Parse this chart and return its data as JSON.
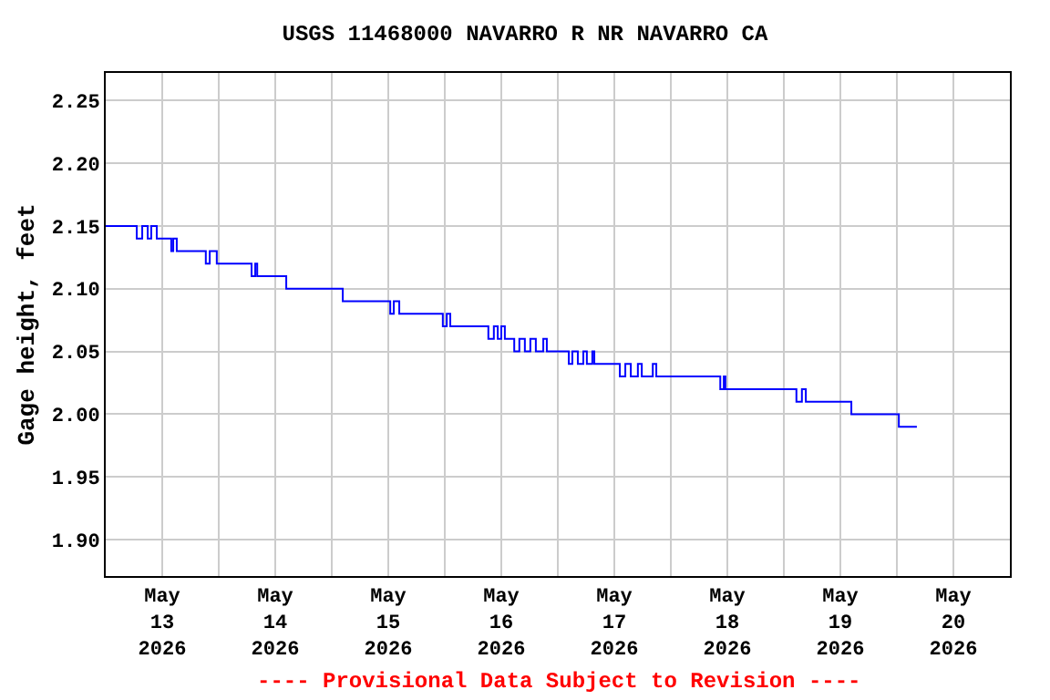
{
  "chart_data": {
    "type": "step",
    "title": "USGS 11468000 NAVARRO R NR NAVARRO CA",
    "ylabel": "Gage height, feet",
    "annotations": [
      "---- Provisional Data Subject to Revision ----"
    ],
    "x": [
      "2026-05-13T00:00",
      "2026-05-13T06:35",
      "2026-05-13T07:45",
      "2026-05-13T08:55",
      "2026-05-13T09:40",
      "2026-05-13T10:50",
      "2026-05-13T13:55",
      "2026-05-13T14:20",
      "2026-05-13T15:05",
      "2026-05-13T21:15",
      "2026-05-13T22:05",
      "2026-05-13T23:35",
      "2026-05-14T06:58",
      "2026-05-14T07:45",
      "2026-05-14T08:10",
      "2026-05-14T14:20",
      "2026-05-15T02:20",
      "2026-05-15T12:25",
      "2026-05-15T13:10",
      "2026-05-15T14:20",
      "2026-05-15T23:35",
      "2026-05-16T00:25",
      "2026-05-16T01:10",
      "2026-05-16T09:15",
      "2026-05-16T10:25",
      "2026-05-16T11:15",
      "2026-05-16T12:00",
      "2026-05-16T12:45",
      "2026-05-16T14:45",
      "2026-05-16T15:50",
      "2026-05-16T17:00",
      "2026-05-16T18:10",
      "2026-05-16T19:20",
      "2026-05-16T20:55",
      "2026-05-16T21:40",
      "2026-05-17T02:20",
      "2026-05-17T03:05",
      "2026-05-17T04:15",
      "2026-05-17T05:25",
      "2026-05-17T06:10",
      "2026-05-17T07:20",
      "2026-05-17T07:45",
      "2026-05-17T13:10",
      "2026-05-17T14:20",
      "2026-05-17T15:30",
      "2026-05-17T17:00",
      "2026-05-17T17:50",
      "2026-05-17T20:10",
      "2026-05-17T20:55",
      "2026-05-18T10:30",
      "2026-05-18T11:15",
      "2026-05-18T11:35",
      "2026-05-19T02:40",
      "2026-05-19T03:50",
      "2026-05-19T04:40",
      "2026-05-19T14:20",
      "2026-05-20T00:25",
      "2026-05-20T04:15"
    ],
    "series": [
      {
        "color": "#0000ff",
        "values": [
          2.15,
          2.14,
          2.15,
          2.14,
          2.15,
          2.14,
          2.13,
          2.14,
          2.13,
          2.12,
          2.13,
          2.12,
          2.11,
          2.12,
          2.11,
          2.1,
          2.09,
          2.08,
          2.09,
          2.08,
          2.07,
          2.08,
          2.07,
          2.06,
          2.07,
          2.06,
          2.07,
          2.06,
          2.05,
          2.06,
          2.05,
          2.06,
          2.05,
          2.06,
          2.05,
          2.04,
          2.05,
          2.04,
          2.05,
          2.04,
          2.05,
          2.04,
          2.03,
          2.04,
          2.03,
          2.04,
          2.03,
          2.04,
          2.03,
          2.02,
          2.03,
          2.02,
          2.01,
          2.02,
          2.01,
          2.0,
          1.99,
          1.99
        ]
      }
    ],
    "xlim": [
      "2026-05-13T00:00",
      "2026-05-21T00:00"
    ],
    "xticks": [
      {
        "value": "2026-05-13T12:00",
        "label": "May\n13\n2026"
      },
      {
        "value": "2026-05-14T00:00",
        "label": null
      },
      {
        "value": "2026-05-14T12:00",
        "label": "May\n14\n2026"
      },
      {
        "value": "2026-05-15T00:00",
        "label": null
      },
      {
        "value": "2026-05-15T12:00",
        "label": "May\n15\n2026"
      },
      {
        "value": "2026-05-16T00:00",
        "label": null
      },
      {
        "value": "2026-05-16T12:00",
        "label": "May\n16\n2026"
      },
      {
        "value": "2026-05-17T00:00",
        "label": null
      },
      {
        "value": "2026-05-17T12:00",
        "label": "May\n17\n2026"
      },
      {
        "value": "2026-05-18T00:00",
        "label": null
      },
      {
        "value": "2026-05-18T12:00",
        "label": "May\n18\n2026"
      },
      {
        "value": "2026-05-19T00:00",
        "label": null
      },
      {
        "value": "2026-05-19T12:00",
        "label": "May\n19\n2026"
      },
      {
        "value": "2026-05-20T00:00",
        "label": null
      },
      {
        "value": "2026-05-20T12:00",
        "label": "May\n20\n2026"
      }
    ],
    "ylim": [
      1.871,
      2.272
    ],
    "yticks": [
      {
        "value": 1.9,
        "label": "1.90"
      },
      {
        "value": 1.95,
        "label": "1.95"
      },
      {
        "value": 2.0,
        "label": "2.00"
      },
      {
        "value": 2.05,
        "label": "2.05"
      },
      {
        "value": 2.1,
        "label": "2.10"
      },
      {
        "value": 2.15,
        "label": "2.15"
      },
      {
        "value": 2.2,
        "label": "2.20"
      },
      {
        "value": 2.25,
        "label": "2.25"
      }
    ],
    "grid": true
  }
}
